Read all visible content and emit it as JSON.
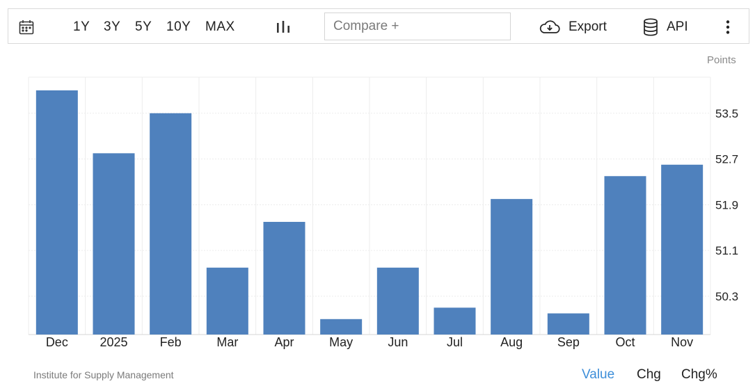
{
  "toolbar": {
    "ranges": [
      "1Y",
      "3Y",
      "5Y",
      "10Y",
      "MAX"
    ],
    "compare_placeholder": "Compare +",
    "export_label": "Export",
    "api_label": "API",
    "icons": {
      "calendar": "calendar-icon",
      "chart_type": "bar-chart-icon",
      "export": "cloud-download-icon",
      "api": "database-icon",
      "more": "more-vertical-icon"
    }
  },
  "unit_label": "Points",
  "source": "Institute for Supply Management",
  "view_tabs": {
    "value": "Value",
    "chg": "Chg",
    "chgpct": "Chg%",
    "active": "value"
  },
  "colors": {
    "bar": "#4f81bd",
    "active_tab": "#3d8ed9"
  },
  "chart_data": {
    "type": "bar",
    "categories": [
      "Dec",
      "2025",
      "Feb",
      "Mar",
      "Apr",
      "May",
      "Jun",
      "Jul",
      "Aug",
      "Sep",
      "Oct",
      "Nov"
    ],
    "values": [
      53.9,
      52.8,
      53.5,
      50.8,
      51.6,
      49.9,
      50.8,
      50.1,
      52.0,
      50.0,
      52.4,
      52.6
    ],
    "ylim": [
      49.63,
      54.13
    ],
    "yticks": [
      50.3,
      51.1,
      51.9,
      52.7,
      53.5
    ],
    "ytick_labels": [
      "50.3",
      "51.1",
      "51.9",
      "52.7",
      "53.5"
    ],
    "y_axis_side": "right",
    "grid": true
  }
}
